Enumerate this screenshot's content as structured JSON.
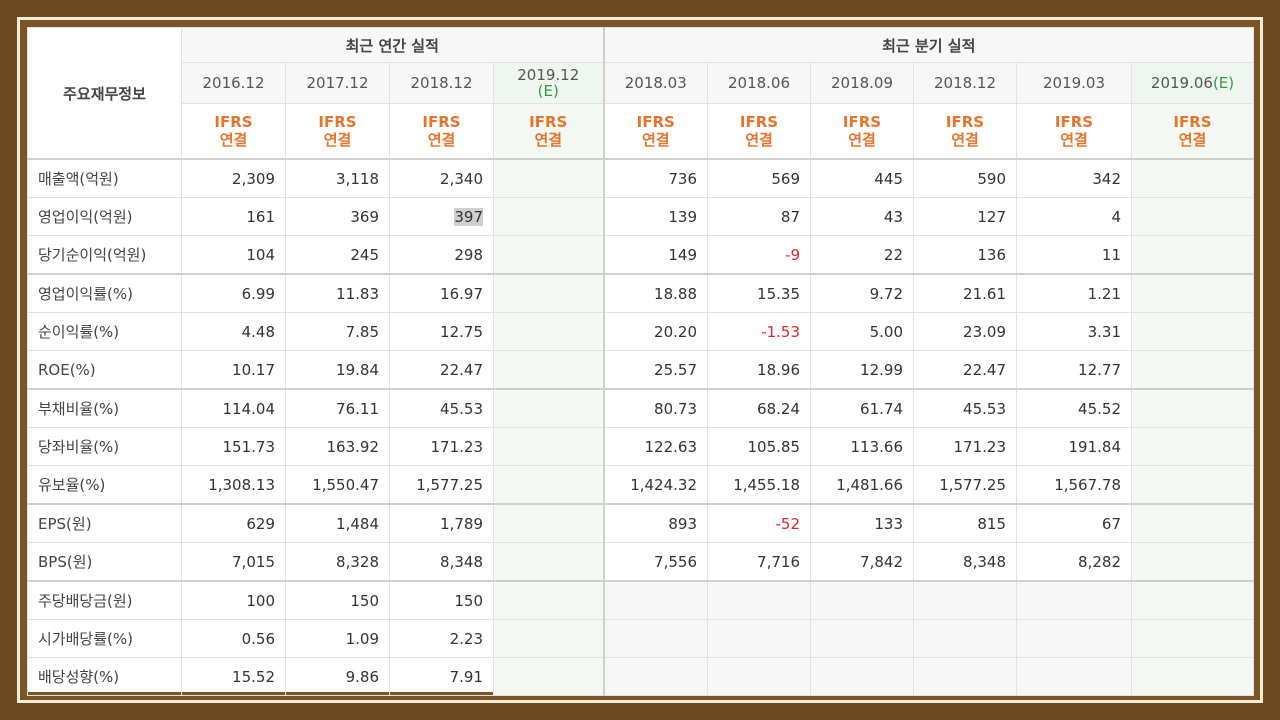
{
  "headers": {
    "corner": "주요재무정보",
    "annual_group": "최근 연간 실적",
    "quarter_group": "최근 분기 실적",
    "annual_periods": [
      "2016.12",
      "2017.12",
      "2018.12"
    ],
    "annual_estimate_period": "2019.12",
    "annual_estimate_tag": "(E)",
    "quarter_periods": [
      "2018.03",
      "2018.06",
      "2018.09",
      "2018.12",
      "2019.03"
    ],
    "quarter_estimate_period": "2019.06",
    "quarter_estimate_tag": "(E)",
    "ifrs_line1": "IFRS",
    "ifrs_line2": "연결"
  },
  "rows": [
    {
      "label": "매출액(억원)",
      "annual": [
        "2,309",
        "3,118",
        "2,340"
      ],
      "quarter": [
        "736",
        "569",
        "445",
        "590",
        "342"
      ]
    },
    {
      "label": "영업이익(억원)",
      "annual": [
        "161",
        "369",
        "397"
      ],
      "quarter": [
        "139",
        "87",
        "43",
        "127",
        "4"
      ]
    },
    {
      "label": "당기순이익(억원)",
      "annual": [
        "104",
        "245",
        "298"
      ],
      "quarter": [
        "149",
        "-9",
        "22",
        "136",
        "11"
      ]
    },
    {
      "label": "영업이익률(%)",
      "annual": [
        "6.99",
        "11.83",
        "16.97"
      ],
      "quarter": [
        "18.88",
        "15.35",
        "9.72",
        "21.61",
        "1.21"
      ]
    },
    {
      "label": "순이익률(%)",
      "annual": [
        "4.48",
        "7.85",
        "12.75"
      ],
      "quarter": [
        "20.20",
        "-1.53",
        "5.00",
        "23.09",
        "3.31"
      ]
    },
    {
      "label": "ROE(%)",
      "annual": [
        "10.17",
        "19.84",
        "22.47"
      ],
      "quarter": [
        "25.57",
        "18.96",
        "12.99",
        "22.47",
        "12.77"
      ]
    },
    {
      "label": "부채비율(%)",
      "annual": [
        "114.04",
        "76.11",
        "45.53"
      ],
      "quarter": [
        "80.73",
        "68.24",
        "61.74",
        "45.53",
        "45.52"
      ]
    },
    {
      "label": "당좌비율(%)",
      "annual": [
        "151.73",
        "163.92",
        "171.23"
      ],
      "quarter": [
        "122.63",
        "105.85",
        "113.66",
        "171.23",
        "191.84"
      ]
    },
    {
      "label": "유보율(%)",
      "annual": [
        "1,308.13",
        "1,550.47",
        "1,577.25"
      ],
      "quarter": [
        "1,424.32",
        "1,455.18",
        "1,481.66",
        "1,577.25",
        "1,567.78"
      ]
    },
    {
      "label": "EPS(원)",
      "annual": [
        "629",
        "1,484",
        "1,789"
      ],
      "quarter": [
        "893",
        "-52",
        "133",
        "815",
        "67"
      ]
    },
    {
      "label": "BPS(원)",
      "annual": [
        "7,015",
        "8,328",
        "8,348"
      ],
      "quarter": [
        "7,556",
        "7,716",
        "7,842",
        "8,348",
        "8,282"
      ]
    },
    {
      "label": "주당배당금(원)",
      "annual": [
        "100",
        "150",
        "150"
      ],
      "quarter": [
        "",
        "",
        "",
        "",
        ""
      ]
    },
    {
      "label": "시가배당률(%)",
      "annual": [
        "0.56",
        "1.09",
        "2.23"
      ],
      "quarter": [
        "",
        "",
        "",
        "",
        ""
      ]
    },
    {
      "label": "배당성향(%)",
      "annual": [
        "15.52",
        "9.86",
        "7.91"
      ],
      "quarter": [
        "",
        "",
        "",
        "",
        ""
      ]
    }
  ],
  "colors": {
    "frame_wood": "#7a5526",
    "ifrs_orange": "#e8732b",
    "estimate_green": "#3a9a4a",
    "negative_red": "#e0242b"
  }
}
